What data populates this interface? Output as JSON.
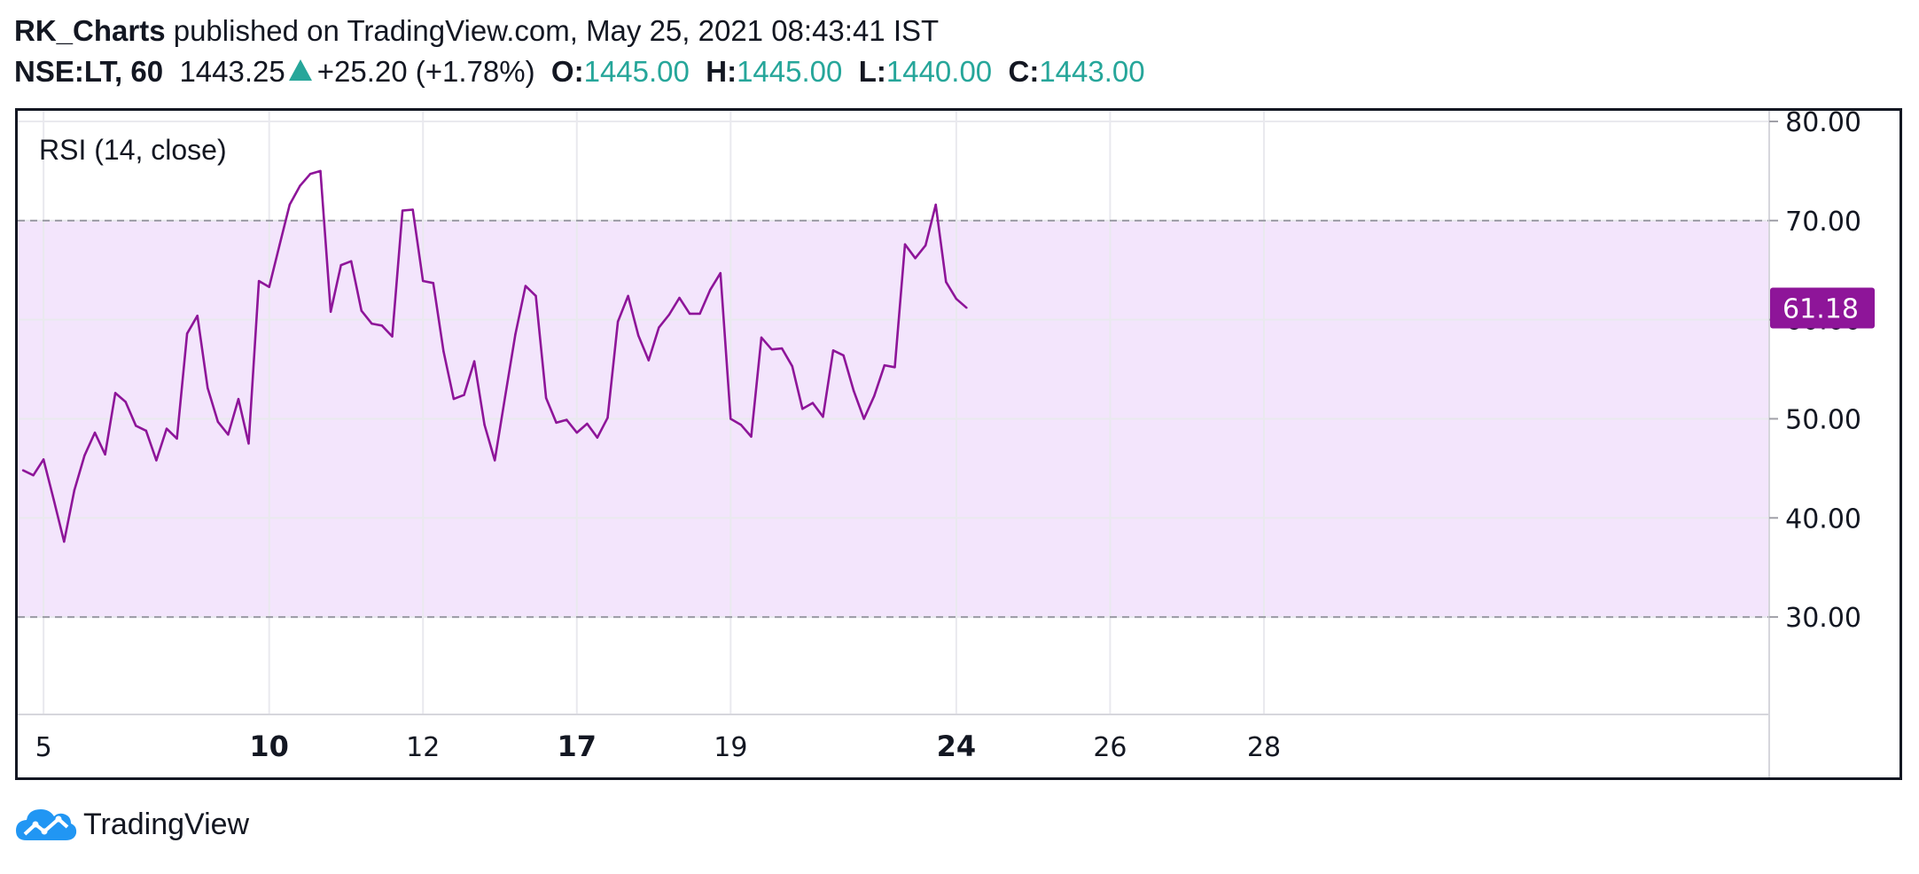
{
  "header": {
    "author": "RK_Charts",
    "published_text": "published on TradingView.com, May 25, 2021 08:43:41 IST",
    "symbol": "NSE:LT, 60",
    "price": "1443.25",
    "change": "+25.20 (+1.78%)",
    "open_label": "O:",
    "open_value": "1445.00",
    "high_label": "H:",
    "high_value": "1445.00",
    "low_label": "L:",
    "low_value": "1440.00",
    "close_label": "C:",
    "close_value": "1443.00"
  },
  "footer": {
    "brand": "TradingView"
  },
  "colors": {
    "line": "#8e1599",
    "band_fill": "#f3e5fc",
    "badge": "#8e1599",
    "positive": "#26a69a"
  },
  "chart_data": {
    "type": "line",
    "indicator_label": "RSI (14, close)",
    "series": [
      {
        "values": [
          44.8,
          44.3,
          45.9,
          41.8,
          37.6,
          42.8,
          46.3,
          48.6,
          46.4,
          52.6,
          51.7,
          49.3,
          48.8,
          45.8,
          49.0,
          48.0,
          58.6,
          60.4,
          53.1,
          49.7,
          48.4,
          52.0,
          47.5,
          63.9,
          63.3,
          67.5,
          71.6,
          73.5,
          74.7,
          75.0,
          60.8,
          65.5,
          65.9,
          60.9,
          59.6,
          59.4,
          58.3,
          71.0,
          71.1,
          63.9,
          63.7,
          56.8,
          52.0,
          52.4,
          55.8,
          49.4,
          45.8,
          52.2,
          58.5,
          63.4,
          62.4,
          52.1,
          49.6,
          49.9,
          48.6,
          49.5,
          48.1,
          50.1,
          59.8,
          62.4,
          58.4,
          55.9,
          59.2,
          60.5,
          62.2,
          60.6,
          60.6,
          63.0,
          64.7,
          50.0,
          49.4,
          48.2,
          58.2,
          57.0,
          57.1,
          55.3,
          51.0,
          51.6,
          50.2,
          56.9,
          56.4,
          52.8,
          50.0,
          52.3,
          55.4,
          55.2,
          67.6,
          66.2,
          67.5,
          71.6,
          63.8,
          62.1,
          61.2
        ]
      }
    ],
    "x_ticks": [
      {
        "label": "5",
        "pos": 2,
        "bold": false
      },
      {
        "label": "10",
        "pos": 24,
        "bold": true
      },
      {
        "label": "12",
        "pos": 39,
        "bold": false
      },
      {
        "label": "17",
        "pos": 54,
        "bold": true
      },
      {
        "label": "19",
        "pos": 69,
        "bold": false
      },
      {
        "label": "24",
        "pos": 91,
        "bold": true
      },
      {
        "label": "26",
        "pos": 106,
        "bold": false
      },
      {
        "label": "28",
        "pos": 121,
        "bold": false
      }
    ],
    "y_ticks": [
      "30.00",
      "40.00",
      "50.00",
      "60.00",
      "70.00",
      "80.00"
    ],
    "ylim": [
      25,
      80
    ],
    "band": [
      30,
      70
    ],
    "last_value_label": "61.18",
    "last_value": 61.18
  }
}
